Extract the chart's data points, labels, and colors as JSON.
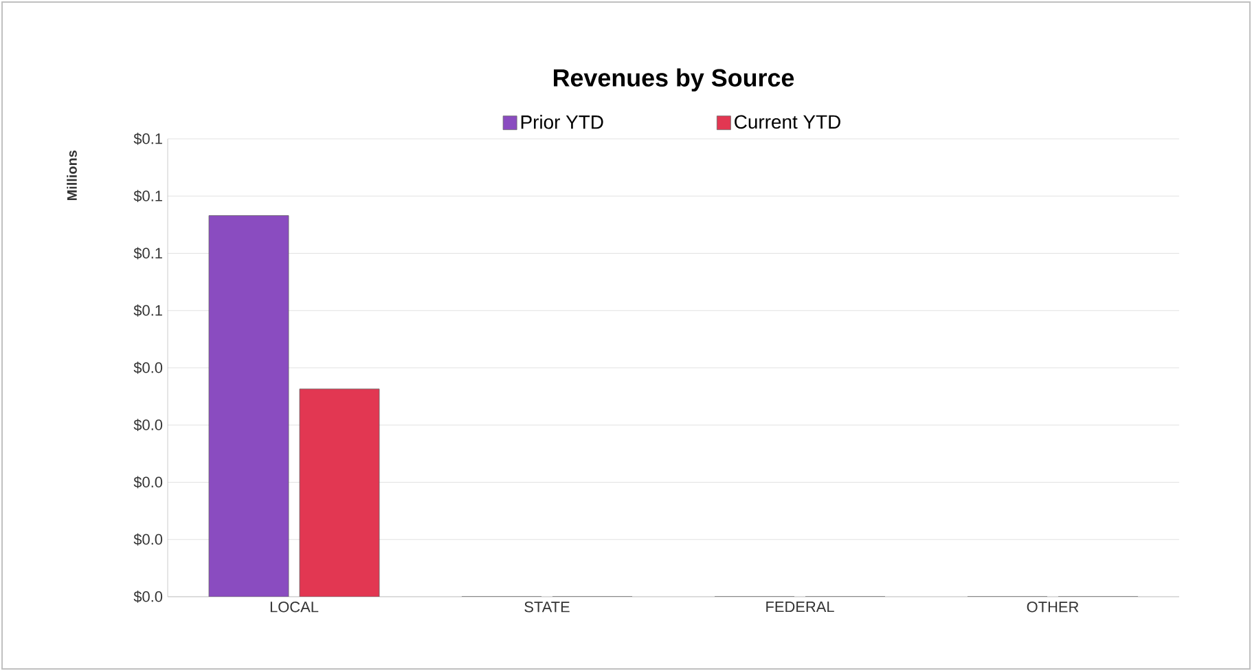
{
  "chart_data": {
    "type": "bar",
    "title": "Revenues by Source",
    "ylabel": "Millions",
    "categories": [
      "LOCAL",
      "STATE",
      "FEDERAL",
      "OTHER"
    ],
    "series": [
      {
        "name": "Prior YTD",
        "color": "#8a4cc0",
        "values": [
          0.0666,
          0,
          0,
          0
        ]
      },
      {
        "name": "Current YTD",
        "color": "#e23752",
        "values": [
          0.0363,
          0,
          0,
          0
        ]
      }
    ],
    "ylim": [
      0,
      0.08
    ],
    "yticks": [
      {
        "value": 0,
        "label": "$0.0"
      },
      {
        "value": 0.01,
        "label": "$0.0"
      },
      {
        "value": 0.02,
        "label": "$0.0"
      },
      {
        "value": 0.03,
        "label": "$0.0"
      },
      {
        "value": 0.04,
        "label": "$0.0"
      },
      {
        "value": 0.05,
        "label": "$0.1"
      },
      {
        "value": 0.06,
        "label": "$0.1"
      },
      {
        "value": 0.07,
        "label": "$0.1"
      },
      {
        "value": 0.08,
        "label": "$0.1"
      }
    ],
    "grid": "y",
    "legend": "top"
  }
}
